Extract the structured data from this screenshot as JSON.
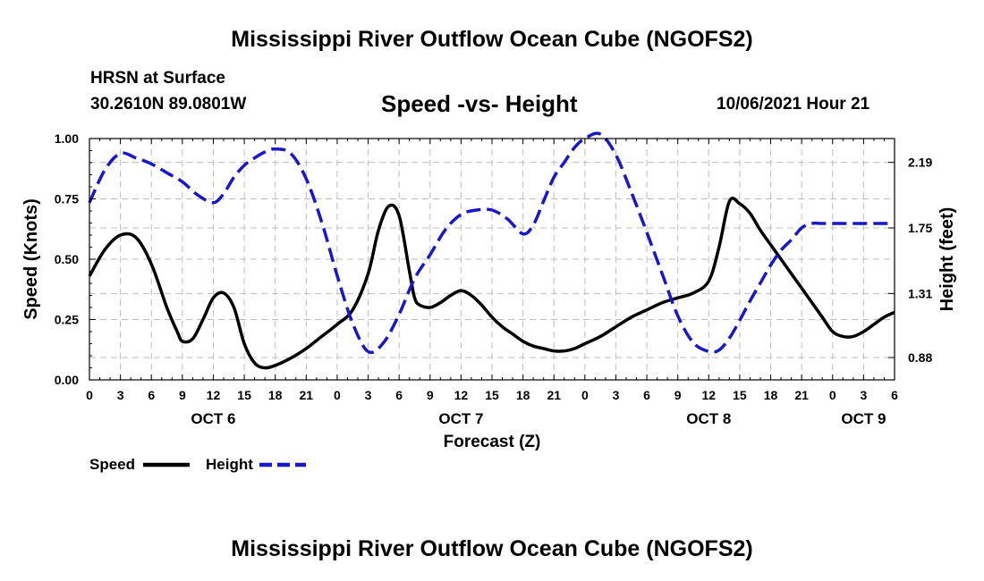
{
  "header": {
    "title": "Mississippi River Outflow Ocean Cube (NGOFS2)",
    "station": "HRSN at Surface",
    "coords": "30.2610N  89.0801W",
    "subtitle": "Speed -vs- Height",
    "datetime": "10/06/2021 Hour 21"
  },
  "footer": {
    "title": "Mississippi River Outflow Ocean Cube (NGOFS2)"
  },
  "chart_data": {
    "type": "line",
    "xlabel": "Forecast (Z)",
    "ylabel": "Speed (Knots)",
    "y2label": "Height (feet)",
    "xlim": [
      0,
      78
    ],
    "ylim": [
      0,
      1
    ],
    "y2lim": [
      0.73,
      2.35
    ],
    "grid": true,
    "legend_position": "bottom-left",
    "x_ticks": [
      0,
      3,
      6,
      9,
      12,
      15,
      18,
      21,
      24,
      27,
      30,
      33,
      36,
      39,
      42,
      45,
      48,
      51,
      54,
      57,
      60,
      63,
      66,
      69,
      72,
      75,
      78
    ],
    "x_tick_labels": [
      "0",
      "3",
      "6",
      "9",
      "12",
      "15",
      "18",
      "21",
      "0",
      "3",
      "6",
      "9",
      "12",
      "15",
      "18",
      "21",
      "0",
      "3",
      "6",
      "9",
      "12",
      "15",
      "18",
      "21",
      "0",
      "3",
      "6"
    ],
    "date_labels": [
      {
        "x": 12,
        "label": "OCT 6"
      },
      {
        "x": 36,
        "label": "OCT 7"
      },
      {
        "x": 60,
        "label": "OCT 8"
      },
      {
        "x": 75,
        "label": "OCT 9"
      }
    ],
    "y_ticks": [
      0,
      0.25,
      0.5,
      0.75,
      1.0
    ],
    "y_tick_labels": [
      "0.00",
      "0.25",
      "0.50",
      "0.75",
      "1.00"
    ],
    "y2_ticks": [
      0.88,
      1.31,
      1.75,
      2.19
    ],
    "y2_tick_labels": [
      "0.88",
      "1.31",
      "1.75",
      "2.19"
    ],
    "series": [
      {
        "name": "Speed",
        "axis": "left",
        "color": "#000000",
        "dash": "solid",
        "x": [
          0,
          1.5,
          3,
          4.5,
          6,
          7.5,
          8.5,
          9,
          10,
          11,
          12,
          13,
          14,
          15,
          16,
          17,
          18,
          19.5,
          21,
          22.5,
          24,
          25.5,
          27,
          28,
          29,
          30,
          31,
          31.5,
          32,
          33,
          34,
          35,
          36,
          37,
          38,
          39,
          40,
          41,
          42,
          43,
          44,
          45,
          46,
          47,
          48,
          49.5,
          51,
          52.5,
          54,
          55.5,
          57,
          58.5,
          60,
          61,
          62,
          63,
          64,
          65,
          66,
          67,
          68,
          69,
          70,
          71,
          72,
          73,
          74,
          75,
          76,
          77,
          78
        ],
        "values": [
          0.43,
          0.54,
          0.6,
          0.59,
          0.48,
          0.3,
          0.2,
          0.16,
          0.17,
          0.25,
          0.34,
          0.36,
          0.3,
          0.15,
          0.07,
          0.05,
          0.06,
          0.09,
          0.13,
          0.18,
          0.23,
          0.29,
          0.44,
          0.62,
          0.72,
          0.68,
          0.45,
          0.34,
          0.31,
          0.3,
          0.32,
          0.35,
          0.37,
          0.35,
          0.31,
          0.26,
          0.22,
          0.19,
          0.16,
          0.14,
          0.13,
          0.12,
          0.12,
          0.13,
          0.15,
          0.18,
          0.22,
          0.26,
          0.29,
          0.32,
          0.34,
          0.36,
          0.41,
          0.55,
          0.74,
          0.73,
          0.69,
          0.62,
          0.56,
          0.5,
          0.44,
          0.38,
          0.32,
          0.26,
          0.2,
          0.18,
          0.18,
          0.2,
          0.23,
          0.26,
          0.28
        ]
      },
      {
        "name": "Height",
        "axis": "right",
        "color": "#1818c8",
        "dash": "dashed",
        "x": [
          0,
          1.5,
          3,
          4.5,
          6,
          7.5,
          9,
          10.5,
          12,
          13,
          14,
          15,
          16,
          17,
          18,
          19.5,
          21,
          22.5,
          24,
          25.5,
          27,
          28.5,
          30,
          31.5,
          33,
          34.5,
          36,
          37.5,
          39,
          40.5,
          42,
          43,
          44,
          45,
          46,
          47,
          48,
          49.5,
          51,
          52.5,
          54,
          55.5,
          57,
          58.5,
          60,
          61,
          62,
          63,
          64,
          65,
          66,
          67,
          68,
          69,
          70,
          71,
          72,
          73,
          74,
          75,
          76,
          77,
          78
        ],
        "values": [
          1.92,
          2.14,
          2.25,
          2.22,
          2.18,
          2.12,
          2.06,
          1.97,
          1.92,
          1.98,
          2.09,
          2.17,
          2.22,
          2.26,
          2.28,
          2.25,
          2.08,
          1.79,
          1.43,
          1.11,
          0.92,
          0.98,
          1.17,
          1.41,
          1.57,
          1.74,
          1.84,
          1.87,
          1.87,
          1.81,
          1.71,
          1.77,
          1.93,
          2.09,
          2.19,
          2.29,
          2.35,
          2.38,
          2.24,
          1.99,
          1.72,
          1.44,
          1.16,
          0.98,
          0.92,
          0.93,
          1.01,
          1.13,
          1.26,
          1.38,
          1.5,
          1.6,
          1.67,
          1.75,
          1.78,
          1.78,
          1.78,
          1.78,
          1.78,
          1.78,
          1.78,
          1.78,
          1.78
        ]
      }
    ]
  }
}
